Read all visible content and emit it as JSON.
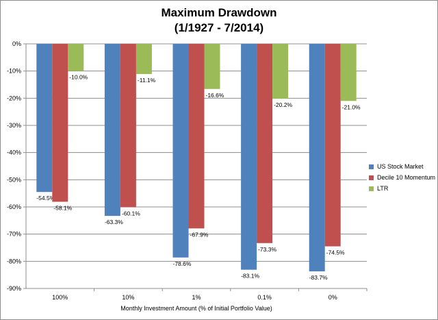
{
  "chart_data": {
    "type": "bar",
    "title": "Maximum Drawdown",
    "subtitle": "(1/1927 - 7/2014)",
    "xlabel": "Monthly Investment Amount (% of Initial Portfolio Value)",
    "ylabel": "",
    "categories": [
      "100%",
      "10%",
      "1%",
      "0.1%",
      "0%"
    ],
    "ylim": [
      -90,
      0
    ],
    "yticks": [
      0,
      -10,
      -20,
      -30,
      -40,
      -50,
      -60,
      -70,
      -80,
      -90
    ],
    "ytick_labels": [
      "0%",
      "-10%",
      "-20%",
      "-30%",
      "-40%",
      "-50%",
      "-60%",
      "-70%",
      "-80%",
      "-90%"
    ],
    "grid": true,
    "legend_position": "right",
    "series": [
      {
        "name": "US Stock Market",
        "color": "#4f81bd",
        "values": [
          -54.5,
          -63.3,
          -78.6,
          -83.1,
          -83.7
        ],
        "labels": [
          "-54.5%",
          "-63.3%",
          "-78.6%",
          "-83.1%",
          "-83.7%"
        ]
      },
      {
        "name": "Decile 10 Momentum",
        "color": "#c0504d",
        "values": [
          -58.1,
          -60.1,
          -67.9,
          -73.3,
          -74.5
        ],
        "labels": [
          "-58.1%",
          "-60.1%",
          "-67.9%",
          "-73.3%",
          "-74.5%"
        ]
      },
      {
        "name": "LTR",
        "color": "#9bbb59",
        "values": [
          -10.0,
          -11.1,
          -16.6,
          -20.2,
          -21.0
        ],
        "labels": [
          "-10.0%",
          "-11.1%",
          "-16.6%",
          "-20.2%",
          "-21.0%"
        ]
      }
    ]
  }
}
